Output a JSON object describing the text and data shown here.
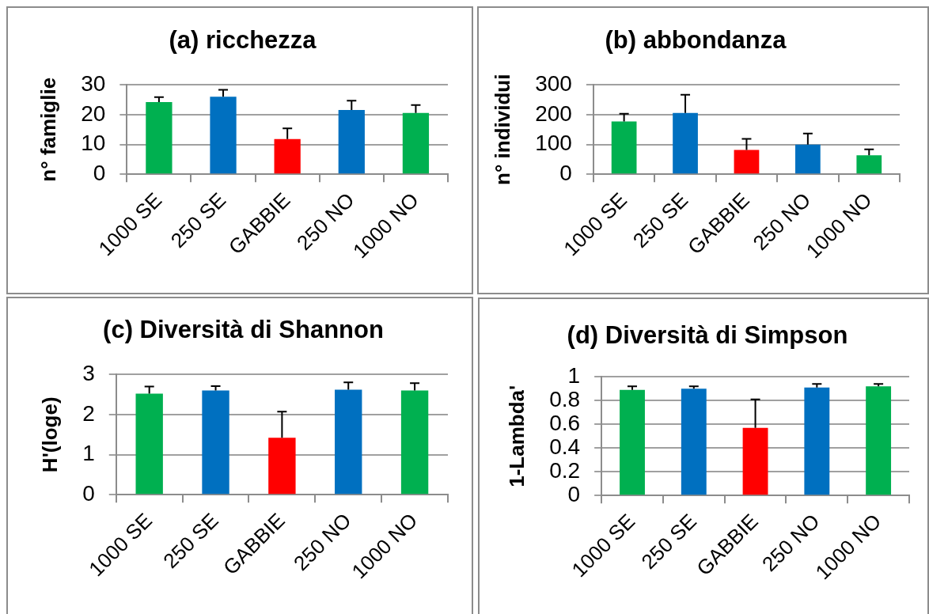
{
  "chart_data": [
    {
      "type": "bar",
      "title": "(a) ricchezza",
      "ylabel": "n° famiglie",
      "categories": [
        "1000 SE",
        "250 SE",
        "GABBIE",
        "250 NO",
        "1000 NO"
      ],
      "values": [
        24.2,
        26.0,
        11.8,
        21.6,
        20.6
      ],
      "colors": [
        "#00b050",
        "#0070c0",
        "#ff0000",
        "#0070c0",
        "#00b050"
      ],
      "errors": [
        [
          24.2,
          25.9
        ],
        [
          26.0,
          28.3
        ],
        [
          11.8,
          15.4
        ],
        [
          21.6,
          24.7
        ],
        [
          20.6,
          23.2
        ]
      ],
      "ylim": [
        0,
        30
      ],
      "yticks": [
        0,
        10,
        20,
        30
      ],
      "grid": "y"
    },
    {
      "type": "bar",
      "title": "(b) abbondanza",
      "ylabel": "n° individui",
      "categories": [
        "1000 SE",
        "250 SE",
        "GABBIE",
        "250 NO",
        "1000 NO"
      ],
      "values": [
        177,
        206,
        82,
        100,
        64
      ],
      "colors": [
        "#00b050",
        "#0070c0",
        "#ff0000",
        "#0070c0",
        "#00b050"
      ],
      "errors": [
        [
          177,
          203
        ],
        [
          206,
          267
        ],
        [
          82,
          119
        ],
        [
          100,
          137
        ],
        [
          64,
          84
        ]
      ],
      "ylim": [
        0,
        300
      ],
      "yticks": [
        0,
        100,
        200,
        300
      ],
      "grid": "y"
    },
    {
      "type": "bar",
      "title": "(c) Diversità di Shannon",
      "ylabel": "H'(loge)",
      "categories": [
        "1000 SE",
        "250 SE",
        "GABBIE",
        "250 NO",
        "1000 NO"
      ],
      "values": [
        2.52,
        2.6,
        1.42,
        2.62,
        2.6
      ],
      "colors": [
        "#00b050",
        "#0070c0",
        "#ff0000",
        "#0070c0",
        "#00b050"
      ],
      "errors": [
        [
          2.52,
          2.7
        ],
        [
          2.6,
          2.71
        ],
        [
          1.42,
          2.07
        ],
        [
          2.62,
          2.8
        ],
        [
          2.6,
          2.78
        ]
      ],
      "ylim": [
        0,
        3
      ],
      "yticks": [
        0,
        1,
        2,
        3
      ],
      "grid": "y"
    },
    {
      "type": "bar",
      "title": "(d) Diversità di Simpson",
      "ylabel": "1-Lambda'",
      "categories": [
        "1000 SE",
        "250 SE",
        "GABBIE",
        "250 NO",
        "1000 NO"
      ],
      "values": [
        0.89,
        0.9,
        0.57,
        0.91,
        0.92
      ],
      "colors": [
        "#00b050",
        "#0070c0",
        "#ff0000",
        "#0070c0",
        "#00b050"
      ],
      "errors": [
        [
          0.89,
          0.92
        ],
        [
          0.9,
          0.92
        ],
        [
          0.57,
          0.81
        ],
        [
          0.91,
          0.94
        ],
        [
          0.92,
          0.94
        ]
      ],
      "ylim": [
        0,
        1
      ],
      "yticks": [
        0,
        0.2,
        0.4,
        0.6,
        0.8,
        1
      ],
      "grid": "y"
    }
  ]
}
